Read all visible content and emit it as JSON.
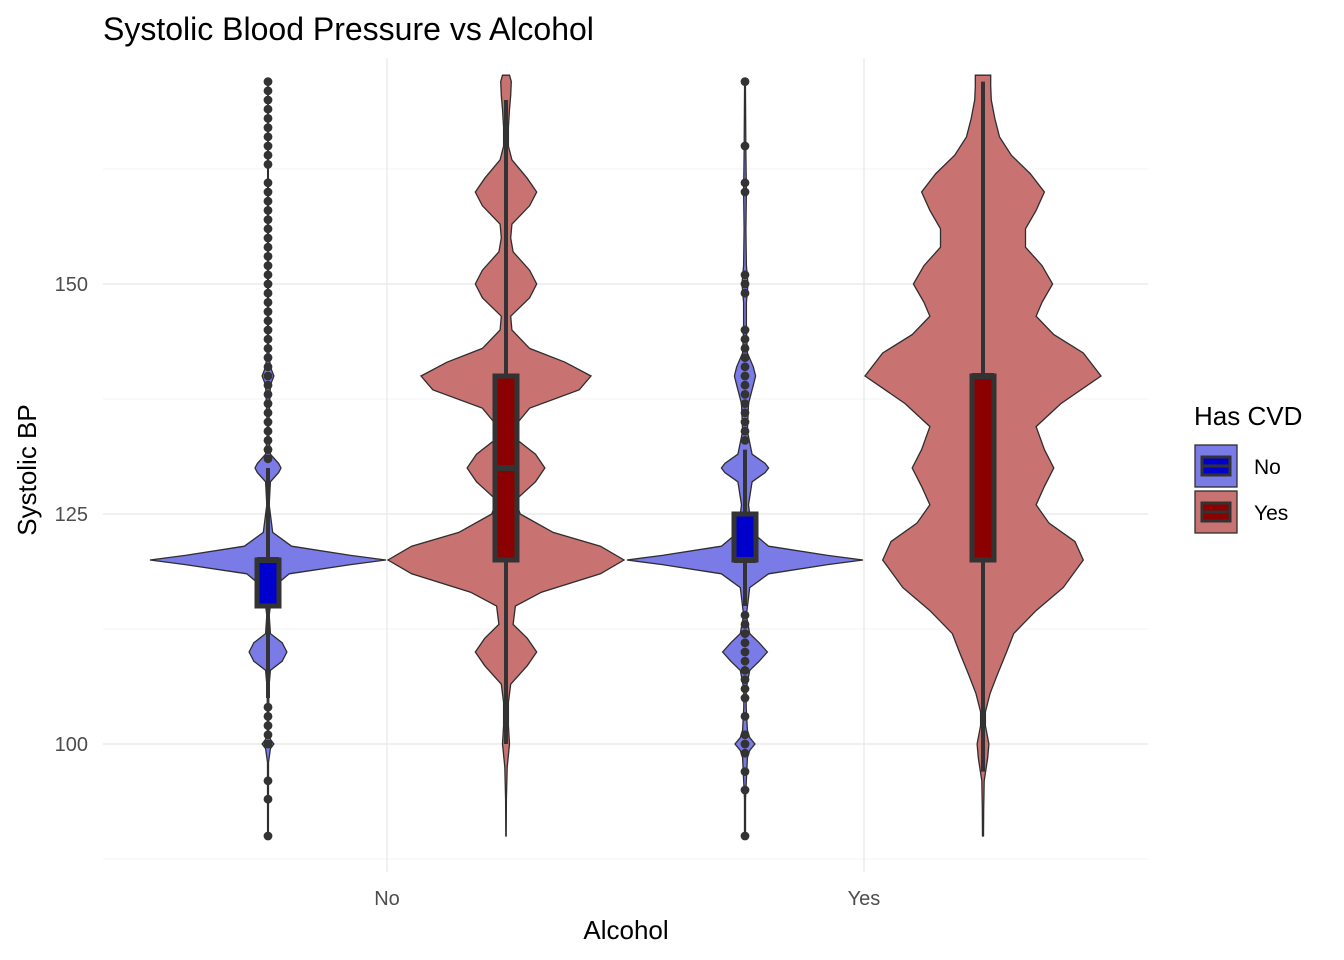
{
  "chart_data": {
    "type": "violin",
    "title": "Systolic Blood Pressure vs Alcohol",
    "xlabel": "Alcohol",
    "ylabel": "Systolic BP",
    "categories": [
      "No",
      "Yes"
    ],
    "ylim": [
      88,
      173
    ],
    "yticks": [
      100,
      125,
      150
    ],
    "grid": true,
    "legend": {
      "title": "Has CVD",
      "position": "right"
    },
    "series": [
      {
        "name": "No",
        "fill": "#0000cd",
        "violin_fill": "#7b7be8",
        "groups": [
          {
            "category": "No",
            "box": {
              "q1": 115,
              "median": 120,
              "q3": 120,
              "whisker_low": 105,
              "whisker_high": 130
            },
            "density": [
              [
                90,
                0.003
              ],
              [
                98,
                0.004
              ],
              [
                99.5,
                0.02
              ],
              [
                100,
                0.05
              ],
              [
                100.5,
                0.02
              ],
              [
                101.5,
                0.005
              ],
              [
                106,
                0.007
              ],
              [
                108,
                0.02
              ],
              [
                109,
                0.12
              ],
              [
                110,
                0.16
              ],
              [
                111,
                0.12
              ],
              [
                112,
                0.02
              ],
              [
                114,
                0.01
              ],
              [
                117,
                0.04
              ],
              [
                118.5,
                0.18
              ],
              [
                119.5,
                0.7
              ],
              [
                120,
                1.0
              ],
              [
                120.5,
                0.7
              ],
              [
                121.5,
                0.2
              ],
              [
                123,
                0.04
              ],
              [
                126,
                0.01
              ],
              [
                128.5,
                0.02
              ],
              [
                129.5,
                0.09
              ],
              [
                130,
                0.11
              ],
              [
                130.5,
                0.09
              ],
              [
                131.5,
                0.02
              ],
              [
                134,
                0.004
              ],
              [
                139,
                0.02
              ],
              [
                140,
                0.05
              ],
              [
                141,
                0.02
              ],
              [
                143,
                0.004
              ],
              [
                150,
                0.003
              ],
              [
                160,
                0.003
              ],
              [
                172,
                0.002
              ]
            ],
            "outliers": [
              90,
              94,
              96,
              100,
              101,
              102,
              103,
              104,
              131,
              132,
              133,
              134,
              135,
              136,
              137,
              138,
              139,
              140,
              141,
              142,
              143,
              144,
              145,
              146,
              147,
              148,
              149,
              150,
              151,
              152,
              153,
              154,
              155,
              156,
              157,
              158,
              159,
              160,
              161,
              163,
              164,
              165,
              166,
              167,
              168,
              169,
              170,
              171,
              172
            ]
          },
          {
            "category": "Yes",
            "box": {
              "q1": 120,
              "median": 120,
              "q3": 125,
              "whisker_low": 115,
              "whisker_high": 132
            },
            "density": [
              [
                90,
                0.004
              ],
              [
                94,
                0.004
              ],
              [
                98.5,
                0.02
              ],
              [
                99.3,
                0.04
              ],
              [
                100,
                0.085
              ],
              [
                100.7,
                0.04
              ],
              [
                101.5,
                0.02
              ],
              [
                104,
                0.01
              ],
              [
                106,
                0.01
              ],
              [
                108,
                0.04
              ],
              [
                109,
                0.12
              ],
              [
                110,
                0.19
              ],
              [
                111,
                0.12
              ],
              [
                112,
                0.04
              ],
              [
                114,
                0.012
              ],
              [
                117,
                0.04
              ],
              [
                118.5,
                0.2
              ],
              [
                119.5,
                0.7
              ],
              [
                120,
                1.0
              ],
              [
                120.5,
                0.7
              ],
              [
                121.5,
                0.2
              ],
              [
                123,
                0.06
              ],
              [
                126,
                0.03
              ],
              [
                128.5,
                0.06
              ],
              [
                129.5,
                0.17
              ],
              [
                130,
                0.2
              ],
              [
                130.5,
                0.17
              ],
              [
                131.5,
                0.06
              ],
              [
                134,
                0.02
              ],
              [
                137,
                0.03
              ],
              [
                139,
                0.07
              ],
              [
                140,
                0.09
              ],
              [
                141,
                0.07
              ],
              [
                142.5,
                0.02
              ],
              [
                145,
                0.012
              ],
              [
                148,
                0.012
              ],
              [
                150,
                0.025
              ],
              [
                152,
                0.012
              ],
              [
                156,
                0.008
              ],
              [
                160,
                0.012
              ],
              [
                164,
                0.008
              ],
              [
                172,
                0.003
              ]
            ],
            "outliers": [
              90,
              95,
              97,
              99,
              100,
              101,
              103,
              105,
              106,
              107,
              108,
              109,
              110,
              111,
              112,
              113,
              114,
              133,
              134,
              135,
              136,
              137,
              138,
              139,
              140,
              141,
              142,
              143,
              144,
              145,
              149,
              150,
              151,
              160,
              161,
              165,
              172
            ]
          }
        ]
      },
      {
        "name": "Yes",
        "fill": "#8b0000",
        "violin_fill": "#c97272",
        "groups": [
          {
            "category": "No",
            "box": {
              "q1": 120,
              "median": 130,
              "q3": 140,
              "whisker_low": 100,
              "whisker_high": 170
            },
            "density": [
              [
                90,
                0.002
              ],
              [
                94,
                0.003
              ],
              [
                97.5,
                0.01
              ],
              [
                100,
                0.03
              ],
              [
                102,
                0.02
              ],
              [
                104.5,
                0.02
              ],
              [
                106.5,
                0.04
              ],
              [
                108.5,
                0.18
              ],
              [
                110,
                0.26
              ],
              [
                111.5,
                0.18
              ],
              [
                113,
                0.06
              ],
              [
                115,
                0.08
              ],
              [
                116.5,
                0.3
              ],
              [
                118.5,
                0.8
              ],
              [
                120,
                1.0
              ],
              [
                121.5,
                0.8
              ],
              [
                123,
                0.4
              ],
              [
                125,
                0.12
              ],
              [
                126.5,
                0.08
              ],
              [
                128.5,
                0.25
              ],
              [
                130,
                0.33
              ],
              [
                131.5,
                0.25
              ],
              [
                133,
                0.1
              ],
              [
                134.5,
                0.07
              ],
              [
                136.5,
                0.2
              ],
              [
                138.5,
                0.62
              ],
              [
                140,
                0.72
              ],
              [
                141.5,
                0.5
              ],
              [
                143,
                0.2
              ],
              [
                145,
                0.05
              ],
              [
                146.5,
                0.04
              ],
              [
                148.5,
                0.2
              ],
              [
                150,
                0.26
              ],
              [
                151.5,
                0.2
              ],
              [
                153.5,
                0.06
              ],
              [
                155,
                0.04
              ],
              [
                156.5,
                0.05
              ],
              [
                158.5,
                0.2
              ],
              [
                160,
                0.26
              ],
              [
                161.5,
                0.18
              ],
              [
                163.5,
                0.05
              ],
              [
                165,
                0.02
              ],
              [
                167,
                0.02
              ],
              [
                169,
                0.03
              ],
              [
                170.5,
                0.04
              ],
              [
                172,
                0.045
              ],
              [
                172.7,
                0.03
              ]
            ],
            "outliers": []
          },
          {
            "category": "Yes",
            "box": {
              "q1": 120,
              "median": 140,
              "q3": 140,
              "whisker_low": 97,
              "whisker_high": 172
            },
            "density": [
              [
                90,
                0.004
              ],
              [
                93,
                0.006
              ],
              [
                96,
                0.01
              ],
              [
                98.5,
                0.04
              ],
              [
                100,
                0.05
              ],
              [
                102,
                0.02
              ],
              [
                103.5,
                0.02
              ],
              [
                105.5,
                0.06
              ],
              [
                107.5,
                0.12
              ],
              [
                110,
                0.2
              ],
              [
                112,
                0.26
              ],
              [
                114.5,
                0.45
              ],
              [
                117,
                0.68
              ],
              [
                120,
                0.85
              ],
              [
                122,
                0.78
              ],
              [
                124,
                0.56
              ],
              [
                126,
                0.45
              ],
              [
                128,
                0.52
              ],
              [
                130,
                0.6
              ],
              [
                132,
                0.52
              ],
              [
                134.5,
                0.45
              ],
              [
                137,
                0.66
              ],
              [
                140,
                1.0
              ],
              [
                142.5,
                0.85
              ],
              [
                144.5,
                0.6
              ],
              [
                146.5,
                0.45
              ],
              [
                148,
                0.5
              ],
              [
                150,
                0.59
              ],
              [
                152,
                0.5
              ],
              [
                154,
                0.36
              ],
              [
                156,
                0.36
              ],
              [
                158,
                0.45
              ],
              [
                160,
                0.52
              ],
              [
                162,
                0.4
              ],
              [
                164,
                0.24
              ],
              [
                166,
                0.14
              ],
              [
                168,
                0.1
              ],
              [
                170,
                0.07
              ],
              [
                171.5,
                0.065
              ],
              [
                172.7,
                0.065
              ]
            ],
            "outliers": []
          }
        ]
      }
    ]
  }
}
